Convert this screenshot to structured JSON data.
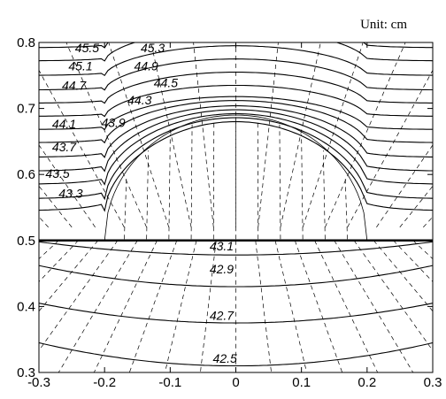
{
  "chart_data": {
    "type": "contour",
    "unit_label": "Unit: cm",
    "xlim": [
      -0.3,
      0.3
    ],
    "ylim": [
      0.3,
      0.8
    ],
    "xticks": [
      "-0.3",
      "-0.2",
      "-0.1",
      "0",
      "0.1",
      "0.2",
      "0.3"
    ],
    "yticks": [
      "0.3",
      "0.4",
      "0.5",
      "0.6",
      "0.7",
      "0.8"
    ],
    "interface_y": 0.5,
    "contour_labels": [
      {
        "text": "45.5",
        "x": -0.245,
        "y": 0.785
      },
      {
        "text": "45.3",
        "x": -0.145,
        "y": 0.785
      },
      {
        "text": "45.1",
        "x": -0.255,
        "y": 0.758
      },
      {
        "text": "44.9",
        "x": -0.155,
        "y": 0.758
      },
      {
        "text": "44.7",
        "x": -0.265,
        "y": 0.728
      },
      {
        "text": "44.5",
        "x": -0.125,
        "y": 0.732
      },
      {
        "text": "44.3",
        "x": -0.165,
        "y": 0.706
      },
      {
        "text": "44.1",
        "x": -0.28,
        "y": 0.67
      },
      {
        "text": "43.9",
        "x": -0.205,
        "y": 0.672
      },
      {
        "text": "43.7",
        "x": -0.28,
        "y": 0.635
      },
      {
        "text": "43.5",
        "x": -0.29,
        "y": 0.595
      },
      {
        "text": "43.3",
        "x": -0.27,
        "y": 0.565
      },
      {
        "text": "43.1",
        "x": -0.04,
        "y": 0.485
      },
      {
        "text": "42.9",
        "x": -0.04,
        "y": 0.45
      },
      {
        "text": "42.7",
        "x": -0.04,
        "y": 0.38
      },
      {
        "text": "42.5",
        "x": -0.035,
        "y": 0.315
      }
    ]
  }
}
